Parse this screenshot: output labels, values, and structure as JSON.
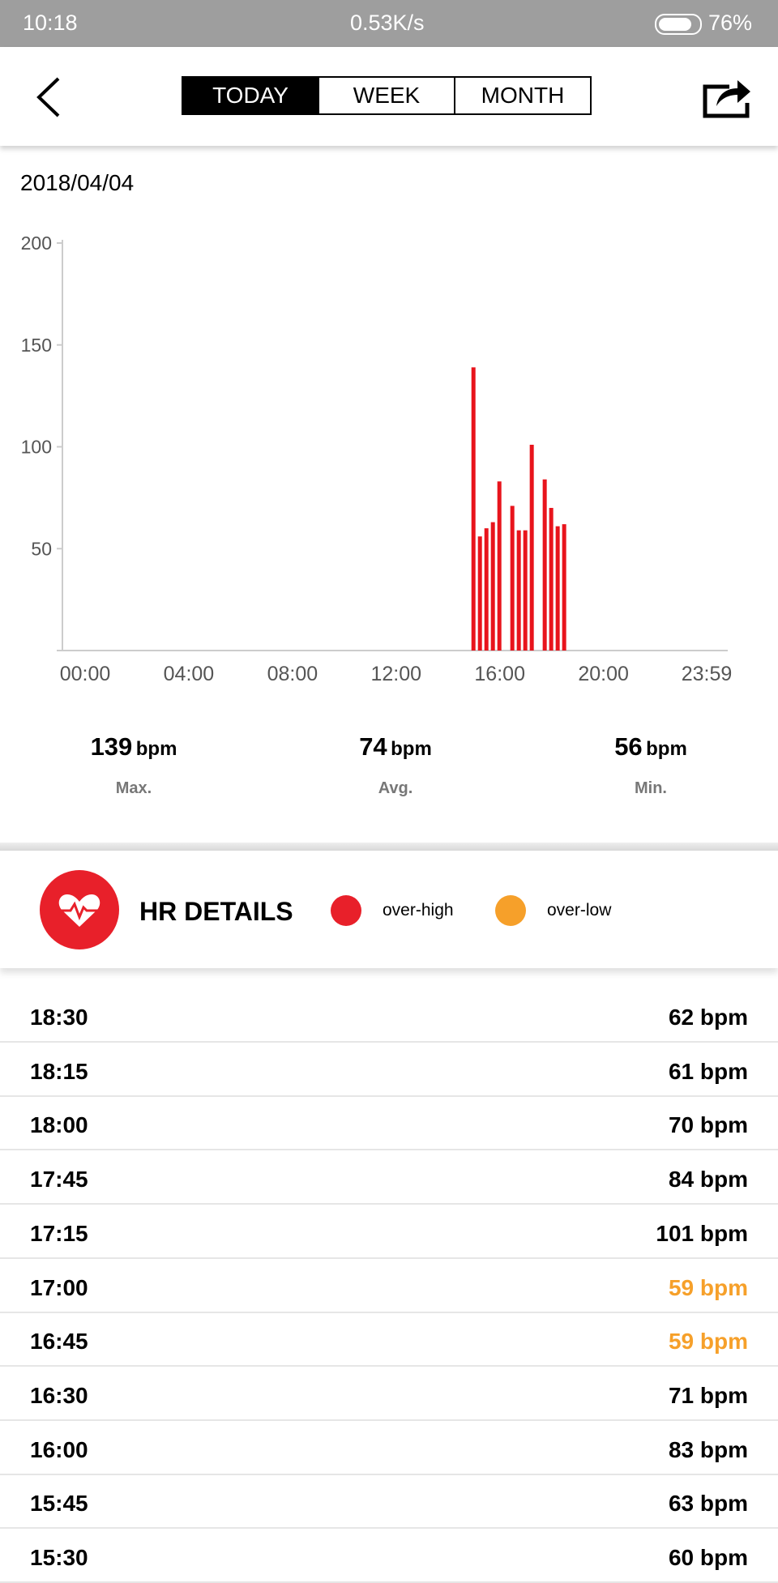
{
  "status_bar": {
    "time": "10:18",
    "speed": "0.53K/s",
    "battery": "76%"
  },
  "tabs": {
    "items": [
      "TODAY",
      "WEEK",
      "MONTH"
    ],
    "selected": 0
  },
  "date": "2018/04/04",
  "chart_data": {
    "type": "bar",
    "color": "#e8141c",
    "x": [
      "15:00",
      "15:15",
      "15:30",
      "15:45",
      "16:00",
      "16:30",
      "16:45",
      "17:00",
      "17:15",
      "17:45",
      "18:00",
      "18:15",
      "18:30"
    ],
    "values": [
      139,
      56,
      60,
      63,
      83,
      71,
      59,
      59,
      101,
      84,
      70,
      61,
      62
    ],
    "xlim": [
      "00:00",
      "23:59"
    ],
    "xticks": [
      "00:00",
      "04:00",
      "08:00",
      "12:00",
      "16:00",
      "20:00",
      "23:59"
    ],
    "ylim": [
      0,
      200
    ],
    "yticks": [
      50,
      100,
      150,
      200
    ]
  },
  "stats": [
    {
      "value": "139",
      "unit": "bpm",
      "label": "Max."
    },
    {
      "value": "74",
      "unit": "bpm",
      "label": "Avg."
    },
    {
      "value": "56",
      "unit": "bpm",
      "label": "Min."
    }
  ],
  "details": {
    "title": "HR DETAILS",
    "legend": [
      {
        "name": "over-high",
        "color": "#e8202a"
      },
      {
        "name": "over-low",
        "color": "#f6a02a"
      }
    ]
  },
  "list": [
    {
      "time": "18:30",
      "value": "62 bpm",
      "color": "#000000"
    },
    {
      "time": "18:15",
      "value": "61 bpm",
      "color": "#000000"
    },
    {
      "time": "18:00",
      "value": "70 bpm",
      "color": "#000000"
    },
    {
      "time": "17:45",
      "value": "84 bpm",
      "color": "#000000"
    },
    {
      "time": "17:15",
      "value": "101 bpm",
      "color": "#000000"
    },
    {
      "time": "17:00",
      "value": "59 bpm",
      "color": "#f6a02a"
    },
    {
      "time": "16:45",
      "value": "59 bpm",
      "color": "#f6a02a"
    },
    {
      "time": "16:30",
      "value": "71 bpm",
      "color": "#000000"
    },
    {
      "time": "16:00",
      "value": "83 bpm",
      "color": "#000000"
    },
    {
      "time": "15:45",
      "value": "63 bpm",
      "color": "#000000"
    },
    {
      "time": "15:30",
      "value": "60 bpm",
      "color": "#000000"
    }
  ]
}
